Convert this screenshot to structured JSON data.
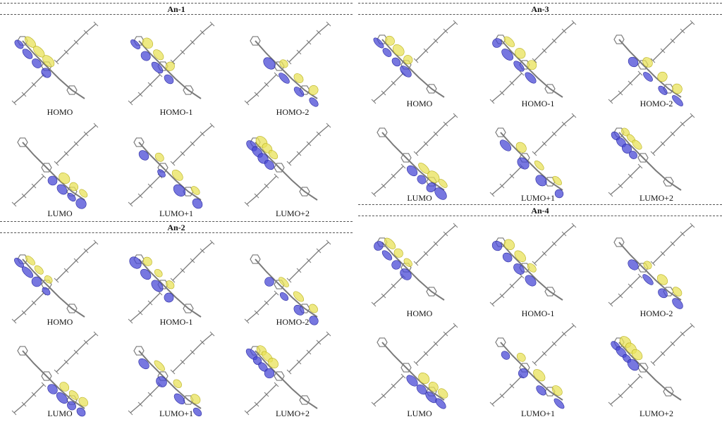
{
  "figure": {
    "panels": [
      {
        "title": "An-1",
        "orbitals": [
          "HOMO",
          "HOMO-1",
          "HOMO-2",
          "LUMO",
          "LUMO+1",
          "LUMO+2"
        ]
      },
      {
        "title": "An-2",
        "orbitals": [
          "HOMO",
          "HOMO-1",
          "HOMO-2",
          "LUMO",
          "LUMO+1",
          "LUMO+2"
        ]
      },
      {
        "title": "An-3",
        "orbitals": [
          "HOMO",
          "HOMO-1",
          "HOMO-2",
          "LUMO",
          "LUMO+1",
          "LUMO+2"
        ]
      },
      {
        "title": "An-4",
        "orbitals": [
          "HOMO",
          "HOMO-1",
          "HOMO-2",
          "LUMO",
          "LUMO+1",
          "LUMO+2"
        ]
      }
    ],
    "colors": {
      "positive_lobe": "#e8e25a",
      "negative_lobe": "#4a4ad6",
      "bonds": "#7a7a7a",
      "divider": "#555555"
    }
  }
}
